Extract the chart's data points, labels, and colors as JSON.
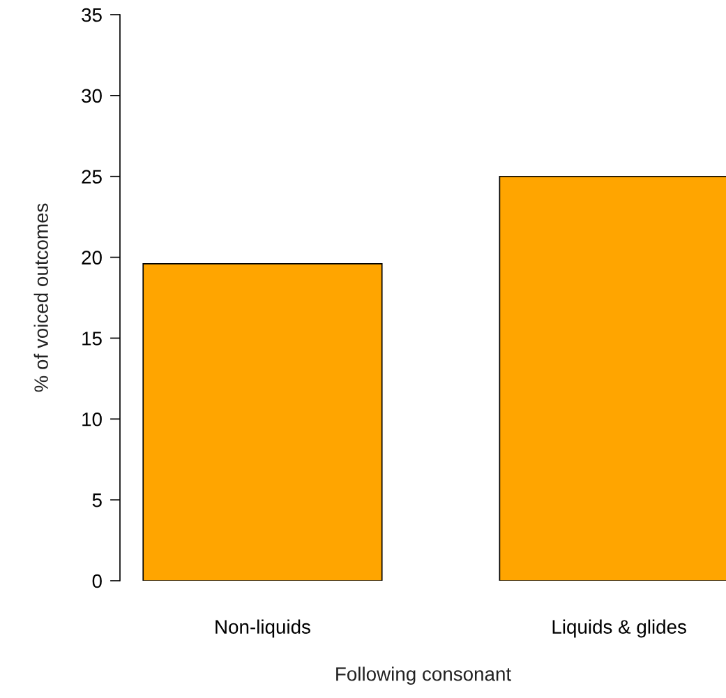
{
  "chart_data": {
    "type": "bar",
    "xlabel": "Following consonant",
    "ylabel": "% of voiced outcomes",
    "categories": [
      "Non-liquids",
      "Liquids & glides"
    ],
    "values": [
      19.6,
      25.0
    ],
    "color": "#ffa500",
    "ylim": [
      0,
      35
    ],
    "yticks": [
      0,
      5,
      10,
      15,
      20,
      25,
      30,
      35
    ],
    "grid": false
  }
}
